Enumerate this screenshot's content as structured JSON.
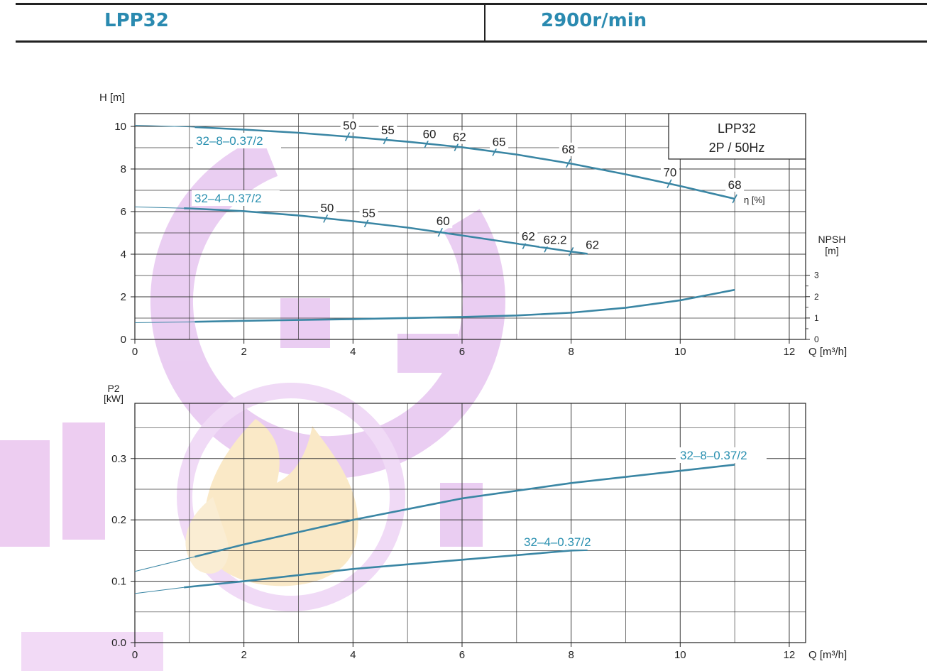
{
  "header": {
    "left_title": "LPP32",
    "right_title": "2900r/min"
  },
  "colors": {
    "curve": "#3a86a4",
    "label": "#2a90b0",
    "grid": "#3a3a3a",
    "watermark_purple": "#d9a6e8",
    "watermark_flame": "#f6d89a"
  },
  "chart_data": [
    {
      "type": "line",
      "name": "head-chart",
      "ylabel": "H [m]",
      "xlabel": "Q [m³/h]",
      "xlim": [
        0,
        12.3
      ],
      "ylim": [
        0,
        10.6
      ],
      "xticks": [
        0,
        2,
        4,
        6,
        8,
        10,
        12
      ],
      "yticks": [
        0,
        2,
        4,
        6,
        8,
        10
      ],
      "grid": true,
      "info_box": [
        "LPP32",
        "2P / 50Hz"
      ],
      "efficiency_label": "η  [%]",
      "secondary_axis": {
        "label_line1": "NPSH",
        "label_line2": "[m]",
        "ticks": [
          0,
          1,
          2,
          3
        ]
      },
      "series": [
        {
          "name": "32–8–0.37/2",
          "x": [
            0,
            1,
            2,
            3,
            4,
            5,
            6,
            7,
            8,
            9,
            10,
            11
          ],
          "y": [
            10.05,
            9.98,
            9.85,
            9.7,
            9.5,
            9.28,
            9.02,
            8.68,
            8.25,
            7.75,
            7.2,
            6.6
          ],
          "main_start_x": 1.1,
          "efficiency_marks": [
            {
              "q": 3.9,
              "eta": "50"
            },
            {
              "q": 4.6,
              "eta": "55"
            },
            {
              "q": 5.35,
              "eta": "60"
            },
            {
              "q": 5.9,
              "eta": "62"
            },
            {
              "q": 6.6,
              "eta": "65"
            },
            {
              "q": 7.95,
              "eta": "68"
            },
            {
              "q": 9.8,
              "eta": "70"
            },
            {
              "q": 11.0,
              "eta": "68"
            }
          ]
        },
        {
          "name": "32–4–0.37/2",
          "x": [
            0,
            1,
            2,
            3,
            4,
            5,
            6,
            7,
            8,
            8.3
          ],
          "y": [
            6.22,
            6.15,
            6.02,
            5.82,
            5.55,
            5.25,
            4.88,
            4.5,
            4.12,
            4.02
          ],
          "main_start_x": 0.9,
          "efficiency_marks": [
            {
              "q": 3.5,
              "eta": "50"
            },
            {
              "q": 4.25,
              "eta": "55"
            },
            {
              "q": 5.6,
              "eta": "60"
            },
            {
              "q": 7.15,
              "eta": "62"
            },
            {
              "q": 7.55,
              "eta": "62.2"
            },
            {
              "q": 8.0,
              "eta": "62"
            }
          ]
        },
        {
          "name": "NPSH",
          "axis": "secondary",
          "x": [
            0,
            1,
            2,
            4,
            6,
            7,
            8,
            9,
            10,
            11
          ],
          "y": [
            0.78,
            0.82,
            0.87,
            0.95,
            1.05,
            1.12,
            1.25,
            1.48,
            1.83,
            2.32
          ],
          "main_start_x": 1.1
        }
      ]
    },
    {
      "type": "line",
      "name": "power-chart",
      "ylabel": "P2 [kW]",
      "xlabel": "Q [m³/h]",
      "xlim": [
        0,
        12.3
      ],
      "ylim": [
        0,
        0.39
      ],
      "xticks": [
        0,
        2,
        4,
        6,
        8,
        10,
        12
      ],
      "yticks": [
        0.0,
        0.1,
        0.2,
        0.3
      ],
      "ytick_labels": [
        "0.0",
        "0.1",
        "0.2",
        "0.3"
      ],
      "grid": true,
      "series": [
        {
          "name": "32–8–0.37/2",
          "x": [
            0,
            1.1,
            2,
            4,
            6,
            8,
            10,
            11
          ],
          "y": [
            0.116,
            0.14,
            0.16,
            0.2,
            0.235,
            0.26,
            0.28,
            0.29
          ],
          "main_start_x": 1.1
        },
        {
          "name": "32–4–0.37/2",
          "x": [
            0,
            0.9,
            2,
            4,
            6,
            8,
            8.3
          ],
          "y": [
            0.08,
            0.09,
            0.1,
            0.12,
            0.135,
            0.15,
            0.151
          ],
          "main_start_x": 0.9
        }
      ]
    }
  ]
}
